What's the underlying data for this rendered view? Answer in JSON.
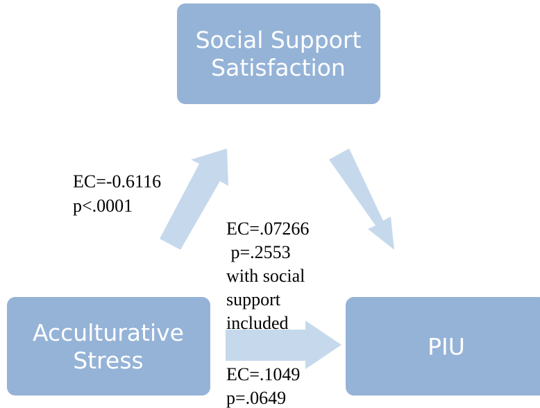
{
  "nodes": [
    {
      "lines": [
        "Social Support",
        "Satisfaction"
      ]
    },
    {
      "lines": [
        "Acculturative",
        "Stress"
      ]
    },
    {
      "lines": [
        "PIU"
      ]
    }
  ],
  "annotations": [
    {
      "lines": [
        "EC=-0.6116",
        "p<.0001"
      ]
    },
    {
      "lines": [
        "EC=.07266",
        " p=.2553",
        "with social",
        "support",
        "included"
      ]
    },
    {
      "lines": [
        "EC=.1049",
        "p=.0649"
      ]
    }
  ]
}
